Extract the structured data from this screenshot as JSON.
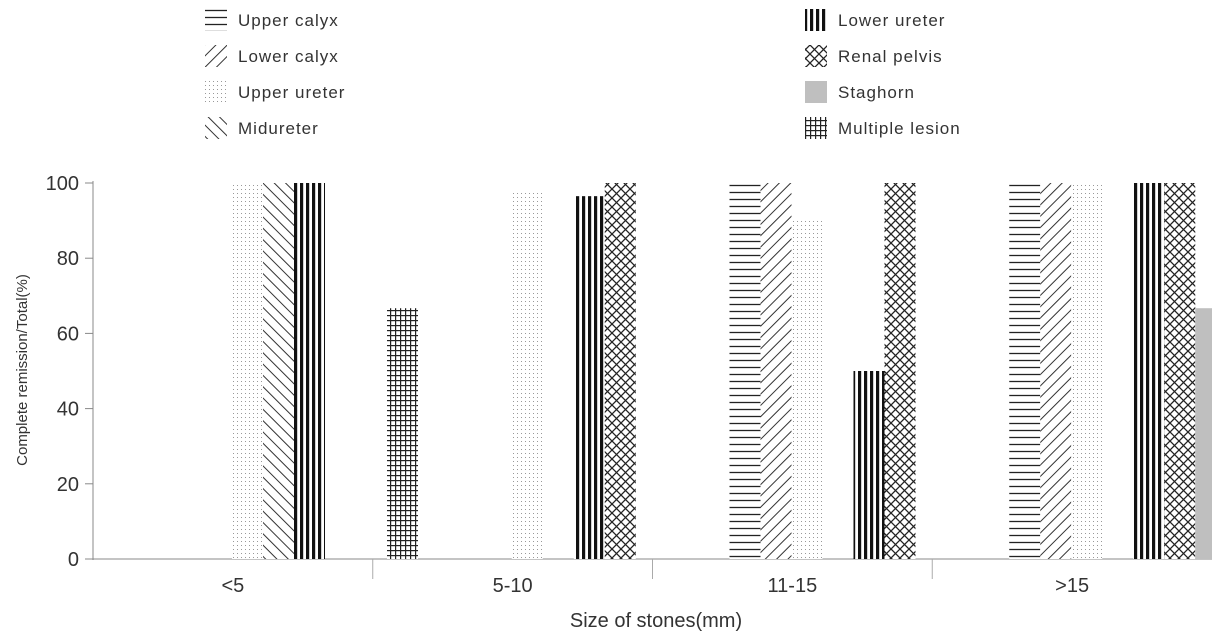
{
  "chart_data": {
    "type": "bar",
    "categories": [
      "<5",
      "5-10",
      "11-15",
      ">15"
    ],
    "xlabel": "Size of stones(mm)",
    "ylabel": "Complete remission/Total(%)",
    "ylim": [
      0,
      100
    ],
    "yticks": [
      0,
      20,
      40,
      60,
      80,
      100
    ],
    "grid": false,
    "legend_placement": "top",
    "series": [
      {
        "name": "Upper calyx",
        "pattern": "horizontal-lines",
        "values": [
          null,
          null,
          100,
          100
        ]
      },
      {
        "name": "Lower calyx",
        "pattern": "forward-diagonal",
        "values": [
          null,
          null,
          100,
          100
        ]
      },
      {
        "name": "Upper ureter",
        "pattern": "dots",
        "values": [
          100,
          98,
          90,
          100
        ]
      },
      {
        "name": "Midureter",
        "pattern": "back-diagonal",
        "values": [
          100,
          null,
          null,
          null
        ]
      },
      {
        "name": "Lower ureter",
        "pattern": "vertical-lines",
        "values": [
          100,
          96.5,
          50,
          100
        ]
      },
      {
        "name": "Renal pelvis",
        "pattern": "crosshatch",
        "values": [
          null,
          100,
          100,
          100
        ]
      },
      {
        "name": "Staghorn",
        "pattern": "solid-gray",
        "values": [
          null,
          null,
          null,
          66.7
        ]
      },
      {
        "name": "Multiple lesion",
        "pattern": "grid",
        "values": [
          66.7,
          null,
          null,
          null
        ]
      }
    ]
  }
}
